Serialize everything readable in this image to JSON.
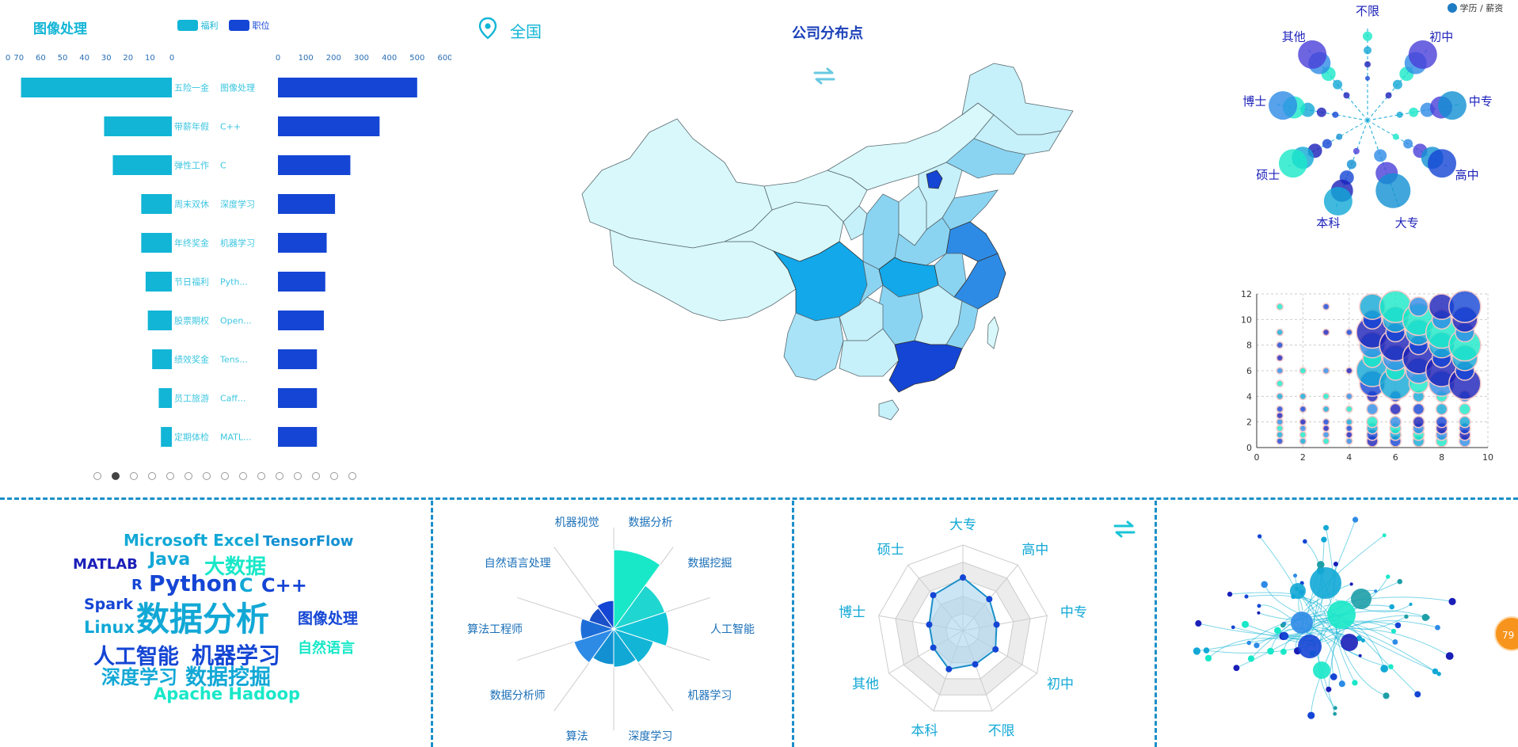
{
  "header": {
    "left_title": "图像处理",
    "legend_welfare": "福利",
    "legend_jobs": "职位",
    "region": "全国",
    "map_title": "公司分布点",
    "polar_legend": "学历 / 薪资"
  },
  "colors": {
    "accent": "#12b5d6",
    "brand_blue": "#1445d4",
    "dark_blue": "#1a1fb8",
    "teal": "#19e8c8",
    "divider": "#1a8fc9"
  },
  "chart_data": [
    {
      "type": "bar",
      "name": "welfare",
      "categories": [
        "五险一金",
        "带薪年假",
        "弹性工作",
        "周末双休",
        "年终奖金",
        "节日福利",
        "股票期权",
        "绩效奖金",
        "员工旅游",
        "定期体检"
      ],
      "values": [
        69,
        31,
        27,
        14,
        14,
        12,
        11,
        9,
        6,
        5
      ],
      "axis_ticks": [
        "0",
        "70",
        "60",
        "50",
        "40",
        "30",
        "20",
        "10",
        "0"
      ],
      "direction": "reversed"
    },
    {
      "type": "bar",
      "name": "jobs",
      "categories": [
        "图像处理",
        "C++",
        "C",
        "深度学习",
        "机器学习",
        "Pyth...",
        "Open...",
        "Tens...",
        "Caff...",
        "MATL..."
      ],
      "values": [
        500,
        365,
        260,
        205,
        175,
        170,
        165,
        140,
        140,
        140
      ],
      "axis_ticks": [
        "0",
        "100",
        "200",
        "300",
        "400",
        "500",
        "600"
      ]
    },
    {
      "type": "map",
      "title": "公司分布点",
      "region": "全国"
    },
    {
      "type": "scatter",
      "name": "polar-bubble",
      "categories": [
        "不限",
        "初中",
        "中专",
        "高中",
        "大专",
        "本科",
        "硕士",
        "博士",
        "其他"
      ],
      "legend": "学历 / 薪资"
    },
    {
      "type": "scatter",
      "name": "bubble-grid",
      "xlim": [
        0,
        10
      ],
      "ylim": [
        0,
        12
      ],
      "xticks": [
        "0",
        "2",
        "4",
        "6",
        "8",
        "10"
      ],
      "yticks": [
        "0",
        "2",
        "4",
        "6",
        "8",
        "10",
        "12"
      ],
      "grid": true
    },
    {
      "type": "pie",
      "name": "rose",
      "categories": [
        "数据分析",
        "数据挖掘",
        "人工智能",
        "机器学习",
        "深度学习",
        "算法",
        "数据分析师",
        "算法工程师",
        "自然语言处理",
        "机器视觉"
      ],
      "values": [
        110,
        68,
        70,
        48,
        42,
        38,
        48,
        34,
        22,
        26
      ]
    },
    {
      "type": "radar",
      "name": "education-radar",
      "categories": [
        "大专",
        "高中",
        "中专",
        "初中",
        "不限",
        "本科",
        "其他",
        "博士",
        "硕士"
      ],
      "values": [
        62,
        48,
        40,
        44,
        42,
        48,
        40,
        40,
        54
      ],
      "max": 100
    }
  ],
  "word_cloud": [
    {
      "text": "Microsoft Excel",
      "color": "#12a8d6"
    },
    {
      "text": "TensorFlow",
      "color": "#1290d2"
    },
    {
      "text": "MATLAB",
      "color": "#1a1fb8"
    },
    {
      "text": "Java",
      "color": "#12a8d6"
    },
    {
      "text": "大数据",
      "color": "#19e8c8"
    },
    {
      "text": "R",
      "color": "#1445d4"
    },
    {
      "text": "Python",
      "color": "#1445d4"
    },
    {
      "text": "C",
      "color": "#12a8d6"
    },
    {
      "text": "C++",
      "color": "#1445d4"
    },
    {
      "text": "Spark",
      "color": "#1445d4"
    },
    {
      "text": "数据分析",
      "color": "#12a8d6"
    },
    {
      "text": "图像处理",
      "color": "#1445d4"
    },
    {
      "text": "Linux",
      "color": "#12a8d6"
    },
    {
      "text": "人工智能",
      "color": "#1445d4"
    },
    {
      "text": "机器学习",
      "color": "#1445d4"
    },
    {
      "text": "自然语言",
      "color": "#19e8c8"
    },
    {
      "text": "深度学习",
      "color": "#12a8d6"
    },
    {
      "text": "数据挖掘",
      "color": "#12a8d6"
    },
    {
      "text": "Apache Hadoop",
      "color": "#19e8c8"
    }
  ],
  "pager": {
    "total": 15,
    "active": 1
  },
  "badge": {
    "text": "79"
  }
}
